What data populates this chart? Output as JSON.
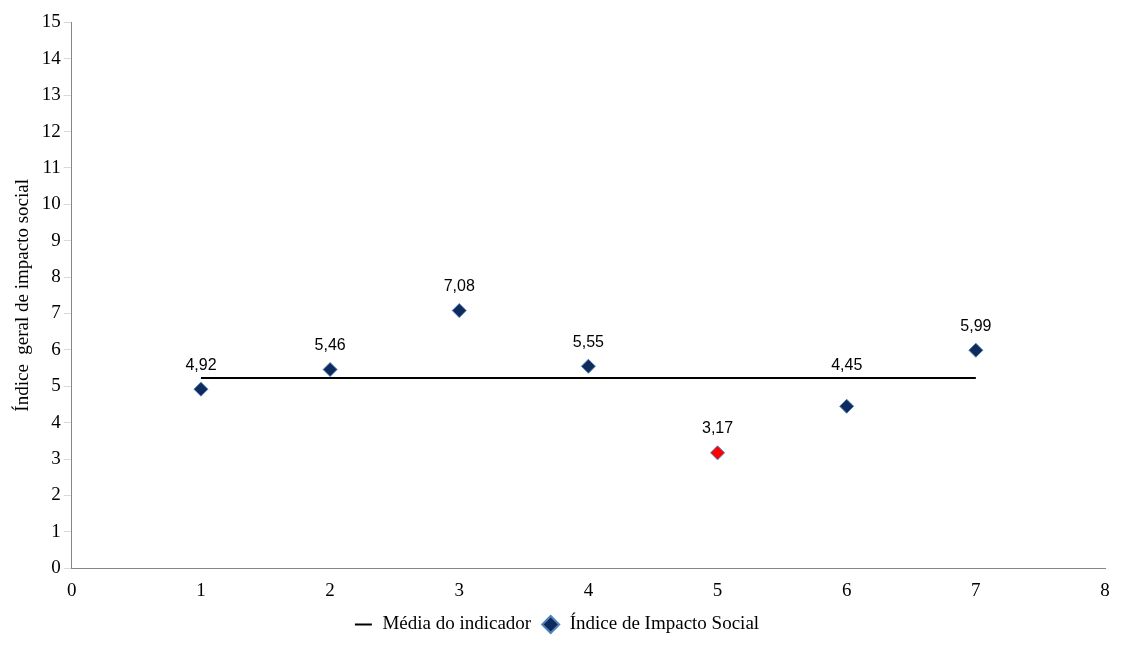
{
  "chart_data": {
    "type": "scatter",
    "ylabel": "Índice  geral de impacto social",
    "xlim": [
      0,
      8
    ],
    "xticks": [
      0,
      1,
      2,
      3,
      4,
      5,
      6,
      7,
      8
    ],
    "ylim": [
      0,
      15
    ],
    "yticks": [
      0,
      1,
      2,
      3,
      4,
      5,
      6,
      7,
      8,
      9,
      10,
      11,
      12,
      13,
      14,
      15
    ],
    "grid": false,
    "legend": "bottom",
    "series": [
      {
        "type": "line",
        "name": "Média do indicador",
        "color": "#000000",
        "x": [
          1,
          7
        ],
        "values": [
          5.23,
          5.23
        ],
        "marker": "none",
        "line_style": "solid"
      },
      {
        "type": "scatter",
        "name": "Índice de Impacto Social",
        "color": "#0f2a5c",
        "colors": [
          "#0f2a5c",
          "#0f2a5c",
          "#0f2a5c",
          "#0f2a5c",
          "#ff0000",
          "#0f2a5c",
          "#0f2a5c"
        ],
        "x": [
          1,
          2,
          3,
          4,
          5,
          6,
          7
        ],
        "values": [
          4.92,
          5.46,
          7.08,
          5.55,
          3.17,
          4.45,
          5.99
        ],
        "marker": "diamond",
        "value_labels": [
          "4,92",
          "5,46",
          "7,08",
          "5,55",
          "3,17",
          "4,45",
          "5,99"
        ]
      }
    ]
  }
}
